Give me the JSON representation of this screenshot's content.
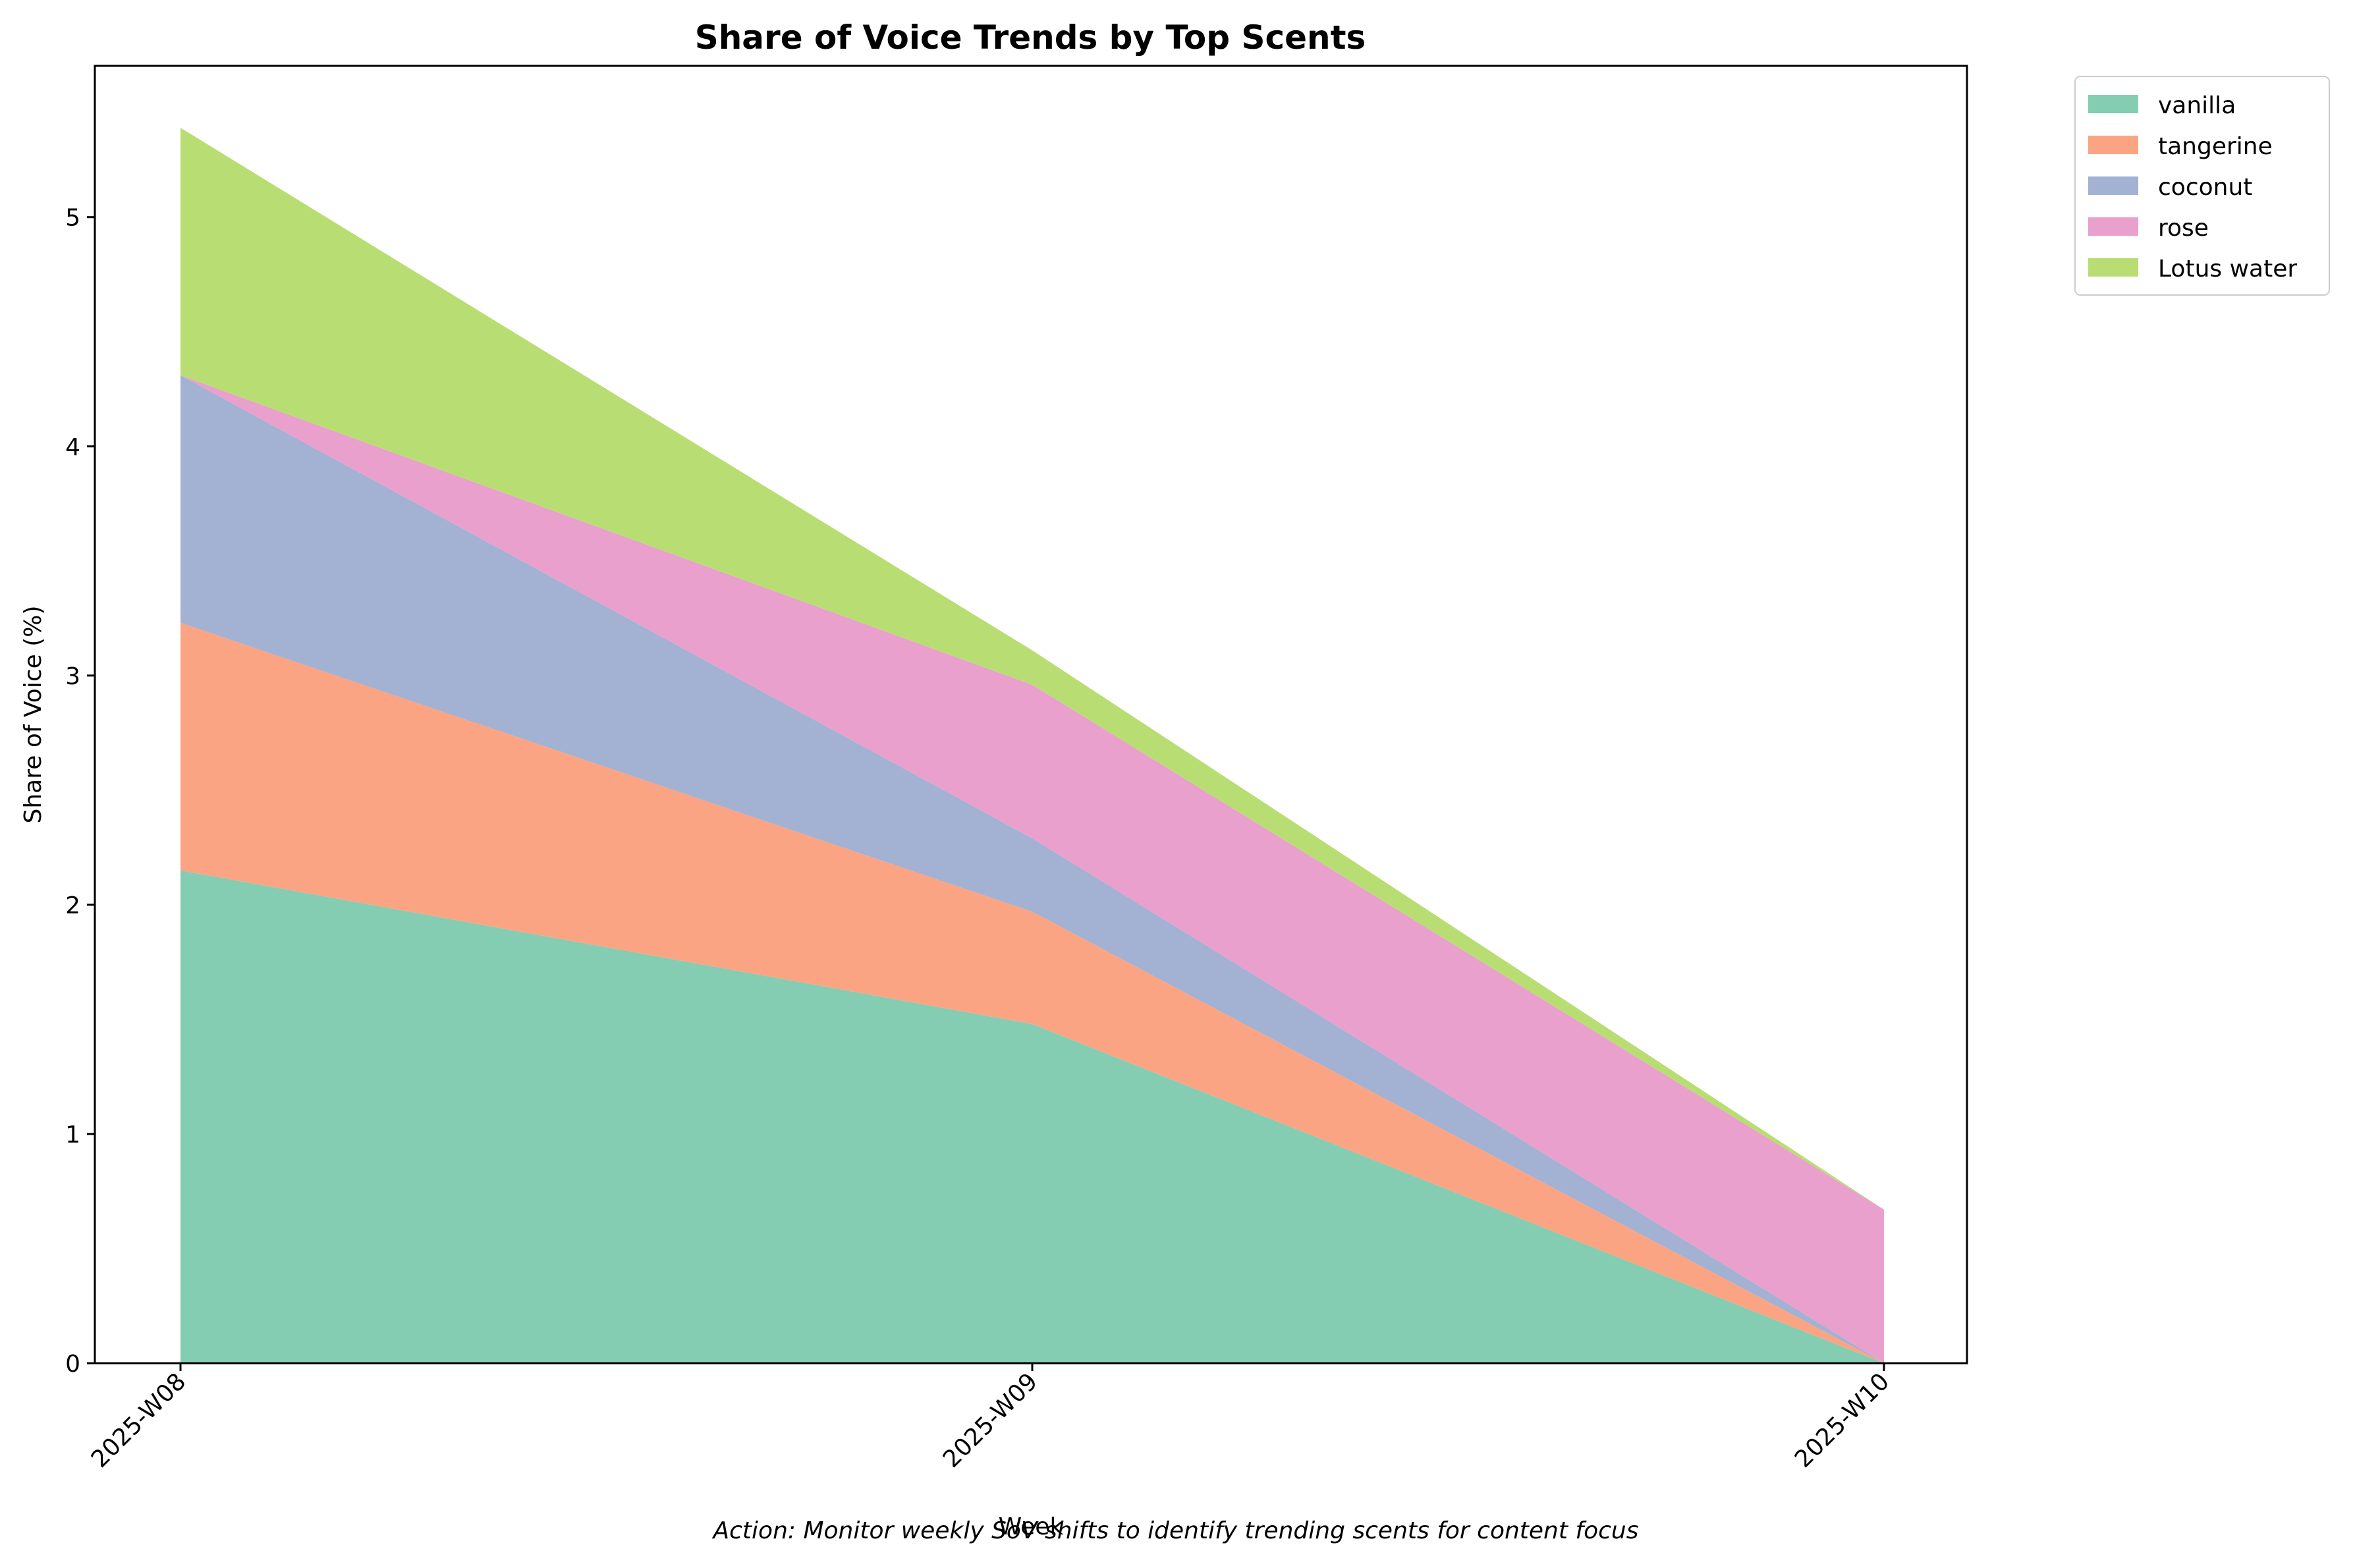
{
  "chart_data": {
    "type": "area",
    "stacked": true,
    "title": "Share of Voice Trends by Top Scents",
    "xlabel": "Week",
    "ylabel": "Share of Voice (%)",
    "categories": [
      "2025-W08",
      "2025-W09",
      "2025-W10"
    ],
    "ylim": [
      0,
      5.66
    ],
    "yticks": [
      0,
      1,
      2,
      3,
      4,
      5
    ],
    "grid": false,
    "legend_position": "outside-top-right",
    "series": [
      {
        "name": "vanilla",
        "color": "#84cdb2",
        "values": [
          2.15,
          1.48,
          0.0
        ]
      },
      {
        "name": "tangerine",
        "color": "#fba483",
        "values": [
          1.08,
          0.49,
          0.0
        ]
      },
      {
        "name": "coconut",
        "color": "#a3b1d3",
        "values": [
          1.08,
          0.32,
          0.0
        ]
      },
      {
        "name": "rose",
        "color": "#e9a0cc",
        "values": [
          0.0,
          0.67,
          0.67
        ]
      },
      {
        "name": "Lotus water",
        "color": "#b8de73",
        "values": [
          1.08,
          0.15,
          0.0
        ]
      }
    ],
    "annotation": "Action: Monitor weekly SoV shifts to identify trending scents for content focus"
  }
}
